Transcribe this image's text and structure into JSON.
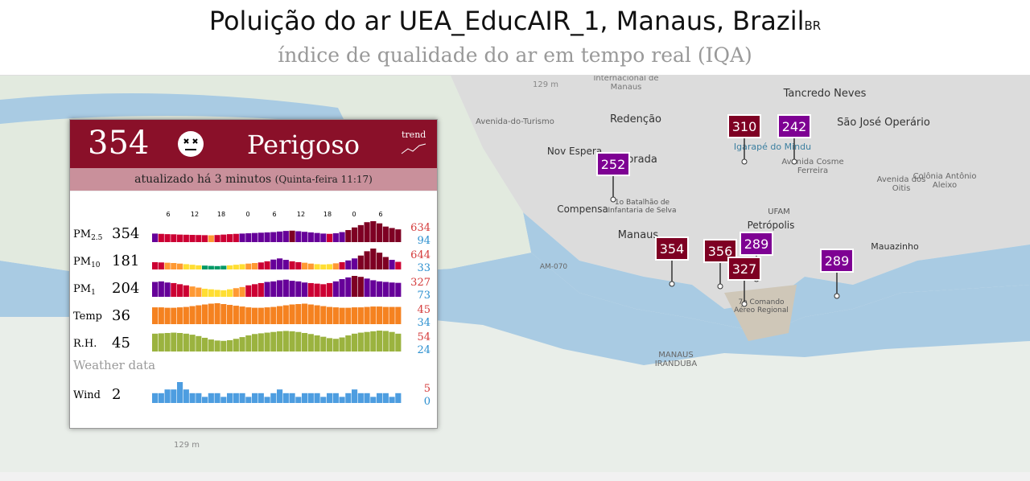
{
  "header": {
    "title": "Poluição do ar UEA_EducAIR_1, Manaus, Brazil",
    "country_code": "BR",
    "subtitle": "índice de qualidade do ar em tempo real (IQA)"
  },
  "map": {
    "labels": [
      "Internacional de Manaus",
      "129 m",
      "Avenida-do-Turismo",
      "Redenção",
      "Tancredo Neves",
      "São José Operário",
      "Nov Espera",
      "Alvorada",
      "Igarapé do Mindu",
      "Avenida Cosme Ferreira",
      "Avenida dos Oitis",
      "Colônia Antônio Aleixo",
      "Compensa",
      "1o Batalhão de Infantaria de Selva",
      "UFAM",
      "Petrópolis",
      "Manaus",
      "Mauazinho",
      "AM-070",
      "7o Comando Aéreo Regional",
      "MANAUS IRANDUBA",
      "129 m"
    ],
    "markers": [
      {
        "value": 252,
        "color": "#7e0193"
      },
      {
        "value": 310,
        "color": "#7e0023"
      },
      {
        "value": 242,
        "color": "#7e0193"
      },
      {
        "value": 354,
        "color": "#7e0023"
      },
      {
        "value": 356,
        "color": "#7e0023"
      },
      {
        "value": 289,
        "color": "#7e0193"
      },
      {
        "value": 327,
        "color": "#7e0023"
      },
      {
        "value": 289,
        "color": "#7e0193"
      }
    ]
  },
  "card": {
    "aqi": 354,
    "level": "Perigoso",
    "trend": "trend",
    "updated": "atualizado há 3 minutos",
    "updated_time": "(Quinta-feira 11:17)",
    "time_ticks": [
      6,
      12,
      18,
      0,
      6,
      12,
      18,
      0,
      6
    ],
    "weather_heading": "Weather data",
    "rows": [
      {
        "label": "PM",
        "sub": "2.5",
        "kind": "aqi",
        "value": 354,
        "max": 634,
        "min": 94,
        "bars": [
          210,
          200,
          190,
          185,
          175,
          170,
          165,
          160,
          155,
          150,
          160,
          175,
          190,
          200,
          210,
          220,
          230,
          240,
          250,
          260,
          280,
          300,
          310,
          290,
          270,
          250,
          230,
          210,
          200,
          220,
          260,
          330,
          420,
          500,
          600,
          634,
          560,
          450,
          400,
          354
        ]
      },
      {
        "label": "PM",
        "sub": "10",
        "kind": "aqi",
        "value": 181,
        "max": 644,
        "min": 33,
        "bars": [
          170,
          160,
          150,
          140,
          120,
          100,
          80,
          60,
          50,
          40,
          33,
          45,
          60,
          80,
          100,
          120,
          140,
          160,
          200,
          260,
          300,
          250,
          200,
          170,
          150,
          120,
          100,
          90,
          100,
          130,
          170,
          230,
          300,
          400,
          550,
          644,
          500,
          350,
          250,
          181
        ]
      },
      {
        "label": "PM",
        "sub": "1",
        "kind": "aqi",
        "value": 204,
        "max": 327,
        "min": 73,
        "bars": [
          220,
          230,
          210,
          200,
          180,
          160,
          140,
          120,
          100,
          90,
          80,
          73,
          90,
          110,
          130,
          160,
          180,
          200,
          220,
          230,
          250,
          260,
          240,
          230,
          210,
          200,
          190,
          180,
          200,
          230,
          270,
          300,
          327,
          310,
          280,
          250,
          230,
          220,
          210,
          204
        ]
      },
      {
        "label": "Temp",
        "kind": "temp",
        "value": 36,
        "max": 45,
        "min": 34,
        "bars": [
          35,
          35,
          34,
          34,
          35,
          36,
          38,
          40,
          42,
          44,
          45,
          43,
          41,
          39,
          37,
          35,
          34,
          34,
          35,
          36,
          38,
          40,
          42,
          43,
          44,
          42,
          40,
          38,
          36,
          35,
          34,
          34,
          35,
          35,
          36,
          37,
          37,
          36,
          36,
          36
        ]
      },
      {
        "label": "R.H.",
        "kind": "rh",
        "value": 45,
        "max": 54,
        "min": 24,
        "bars": [
          45,
          46,
          47,
          48,
          47,
          45,
          42,
          38,
          33,
          28,
          25,
          24,
          26,
          30,
          35,
          40,
          44,
          46,
          48,
          50,
          52,
          53,
          52,
          50,
          47,
          44,
          40,
          36,
          32,
          30,
          34,
          40,
          45,
          48,
          50,
          52,
          54,
          53,
          50,
          45
        ]
      },
      {
        "label": "Wind",
        "kind": "wind",
        "value": 2,
        "max": 5,
        "min": 0,
        "bars": [
          2,
          2,
          3,
          3,
          5,
          3,
          2,
          2,
          1,
          2,
          2,
          1,
          2,
          2,
          2,
          1,
          2,
          2,
          1,
          2,
          3,
          2,
          2,
          1,
          2,
          2,
          2,
          1,
          2,
          2,
          1,
          2,
          3,
          2,
          2,
          1,
          2,
          2,
          1,
          2
        ]
      }
    ]
  }
}
